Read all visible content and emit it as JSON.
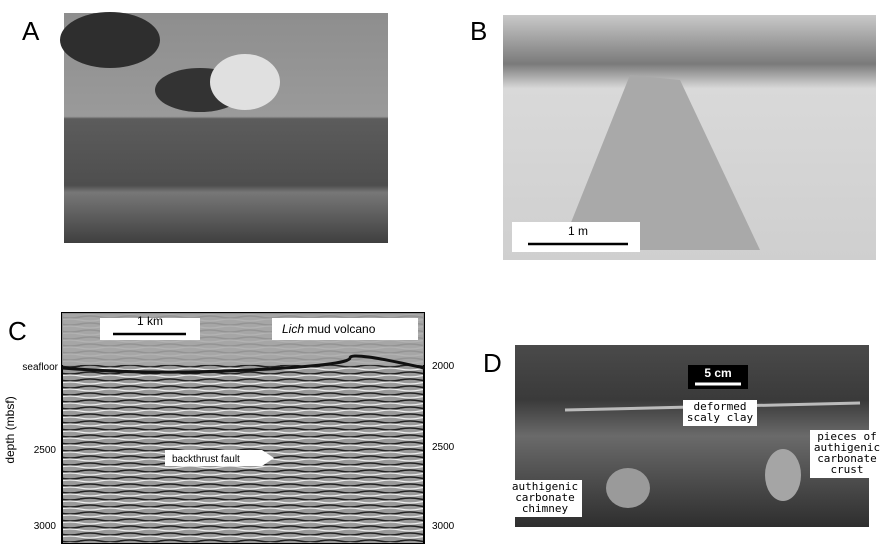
{
  "panels": [
    {
      "letter": "A"
    },
    {
      "letter": "B",
      "scale_bar": "1 m"
    },
    {
      "letter": "C",
      "scale_bar": "1 km",
      "title_italic": "Lich",
      "title_rest": "mud volcano",
      "seafloor_label": "seafloor",
      "axis_label": "depth (mbsf)",
      "left_ticks": [
        "2500",
        "3000"
      ],
      "right_ticks": [
        "2000",
        "2500",
        "3000"
      ],
      "annotation": "backthrust fault"
    },
    {
      "letter": "D",
      "scale_bar": "5 cm",
      "labels": [
        {
          "lines": [
            "deformed",
            "scaly clay"
          ]
        },
        {
          "lines": [
            "pieces of",
            "authigenic",
            "carbonate",
            "crust"
          ]
        },
        {
          "lines": [
            "authigenic",
            "carbonate",
            "chimney"
          ]
        }
      ]
    }
  ]
}
